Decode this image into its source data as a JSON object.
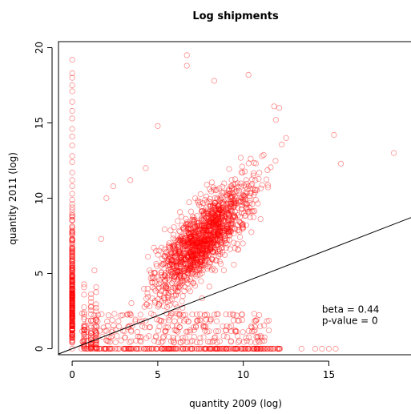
{
  "chart_data": {
    "type": "scatter",
    "title": "Log shipments",
    "xlabel": "quantity 2009 (log)",
    "ylabel": "quantity 2011 (log)",
    "xlim": [
      -0.8,
      19.8
    ],
    "ylim": [
      -0.4,
      20.4
    ],
    "xticks": [
      0,
      5,
      10,
      15
    ],
    "yticks": [
      0,
      5,
      10,
      15,
      20
    ],
    "grid": false,
    "point_color": "#ff0000",
    "point_opacity": 0.45,
    "line_color": "#000000",
    "regression": {
      "intercept": 0.0,
      "slope": 0.44
    },
    "annotations": [
      "beta = 0.44",
      "p-value = 0"
    ],
    "annotation_position": [
      14.6,
      2.4
    ],
    "points_x_zero": [
      [
        0,
        19.2
      ],
      [
        0,
        18.3
      ],
      [
        0,
        18.0
      ],
      [
        0,
        17.5
      ],
      [
        0,
        17.1
      ],
      [
        0,
        16.4
      ],
      [
        0,
        15.8
      ],
      [
        0,
        15.3
      ],
      [
        0,
        14.6
      ],
      [
        0,
        14.1
      ],
      [
        0,
        13.5
      ],
      [
        0,
        12.8
      ],
      [
        0,
        12.4
      ],
      [
        0,
        11.7
      ],
      [
        0,
        11.2
      ],
      [
        0,
        10.8
      ],
      [
        0,
        10.3
      ],
      [
        0,
        9.9
      ],
      [
        0,
        9.4
      ],
      [
        0,
        9.0
      ],
      [
        0,
        8.5
      ],
      [
        0,
        8.1
      ],
      [
        0,
        7.6
      ],
      [
        0,
        7.2
      ],
      [
        0,
        6.7
      ],
      [
        0,
        6.3
      ],
      [
        0,
        5.8
      ],
      [
        0,
        5.4
      ],
      [
        0,
        4.9
      ],
      [
        0,
        4.5
      ],
      [
        0,
        4.0
      ],
      [
        0,
        3.6
      ],
      [
        0,
        3.1
      ],
      [
        0,
        2.7
      ],
      [
        0,
        2.2
      ],
      [
        0,
        1.8
      ],
      [
        0,
        1.3
      ],
      [
        0,
        0.9
      ],
      [
        0,
        0.5
      ],
      [
        0,
        0.0
      ]
    ],
    "points_y_zero": [
      [
        0.7,
        0
      ],
      [
        1.1,
        0
      ],
      [
        1.6,
        0
      ],
      [
        2.0,
        0
      ],
      [
        2.5,
        0
      ],
      [
        3.0,
        0
      ],
      [
        3.5,
        0
      ],
      [
        4.0,
        0
      ],
      [
        4.5,
        0
      ],
      [
        5.0,
        0
      ],
      [
        5.5,
        0
      ],
      [
        6.0,
        0
      ],
      [
        6.5,
        0
      ],
      [
        7.0,
        0
      ],
      [
        7.5,
        0
      ],
      [
        8.0,
        0
      ],
      [
        8.5,
        0
      ],
      [
        9.0,
        0
      ],
      [
        9.5,
        0
      ],
      [
        10.0,
        0
      ],
      [
        10.5,
        0
      ],
      [
        11.0,
        0
      ],
      [
        11.4,
        0
      ],
      [
        11.8,
        0
      ],
      [
        12.1,
        0
      ],
      [
        13.4,
        0
      ],
      [
        14.2,
        0
      ],
      [
        14.6,
        0
      ],
      [
        15.0,
        0
      ],
      [
        15.4,
        0
      ]
    ],
    "points_outliers": [
      [
        6.7,
        19.5
      ],
      [
        6.7,
        18.8
      ],
      [
        10.3,
        18.2
      ],
      [
        8.3,
        17.8
      ],
      [
        11.8,
        16.1
      ],
      [
        12.1,
        16.0
      ],
      [
        11.9,
        15.2
      ],
      [
        5.0,
        14.8
      ],
      [
        18.8,
        13.0
      ],
      [
        15.3,
        14.2
      ],
      [
        15.7,
        12.3
      ],
      [
        12.5,
        14.0
      ],
      [
        2.0,
        10.0
      ],
      [
        2.4,
        10.8
      ],
      [
        3.4,
        11.2
      ],
      [
        1.7,
        7.3
      ],
      [
        1.3,
        5.2
      ],
      [
        4.3,
        12.0
      ]
    ],
    "cloud": {
      "n": 1400,
      "x_mean": 7.6,
      "x_sd": 2.0,
      "slope": 1.05,
      "intercept": -0.7,
      "resid_sd": 1.6,
      "x_range": [
        0.6,
        14.5
      ],
      "y_range": [
        0.3,
        14.5
      ],
      "low_band_n": 260
    }
  }
}
